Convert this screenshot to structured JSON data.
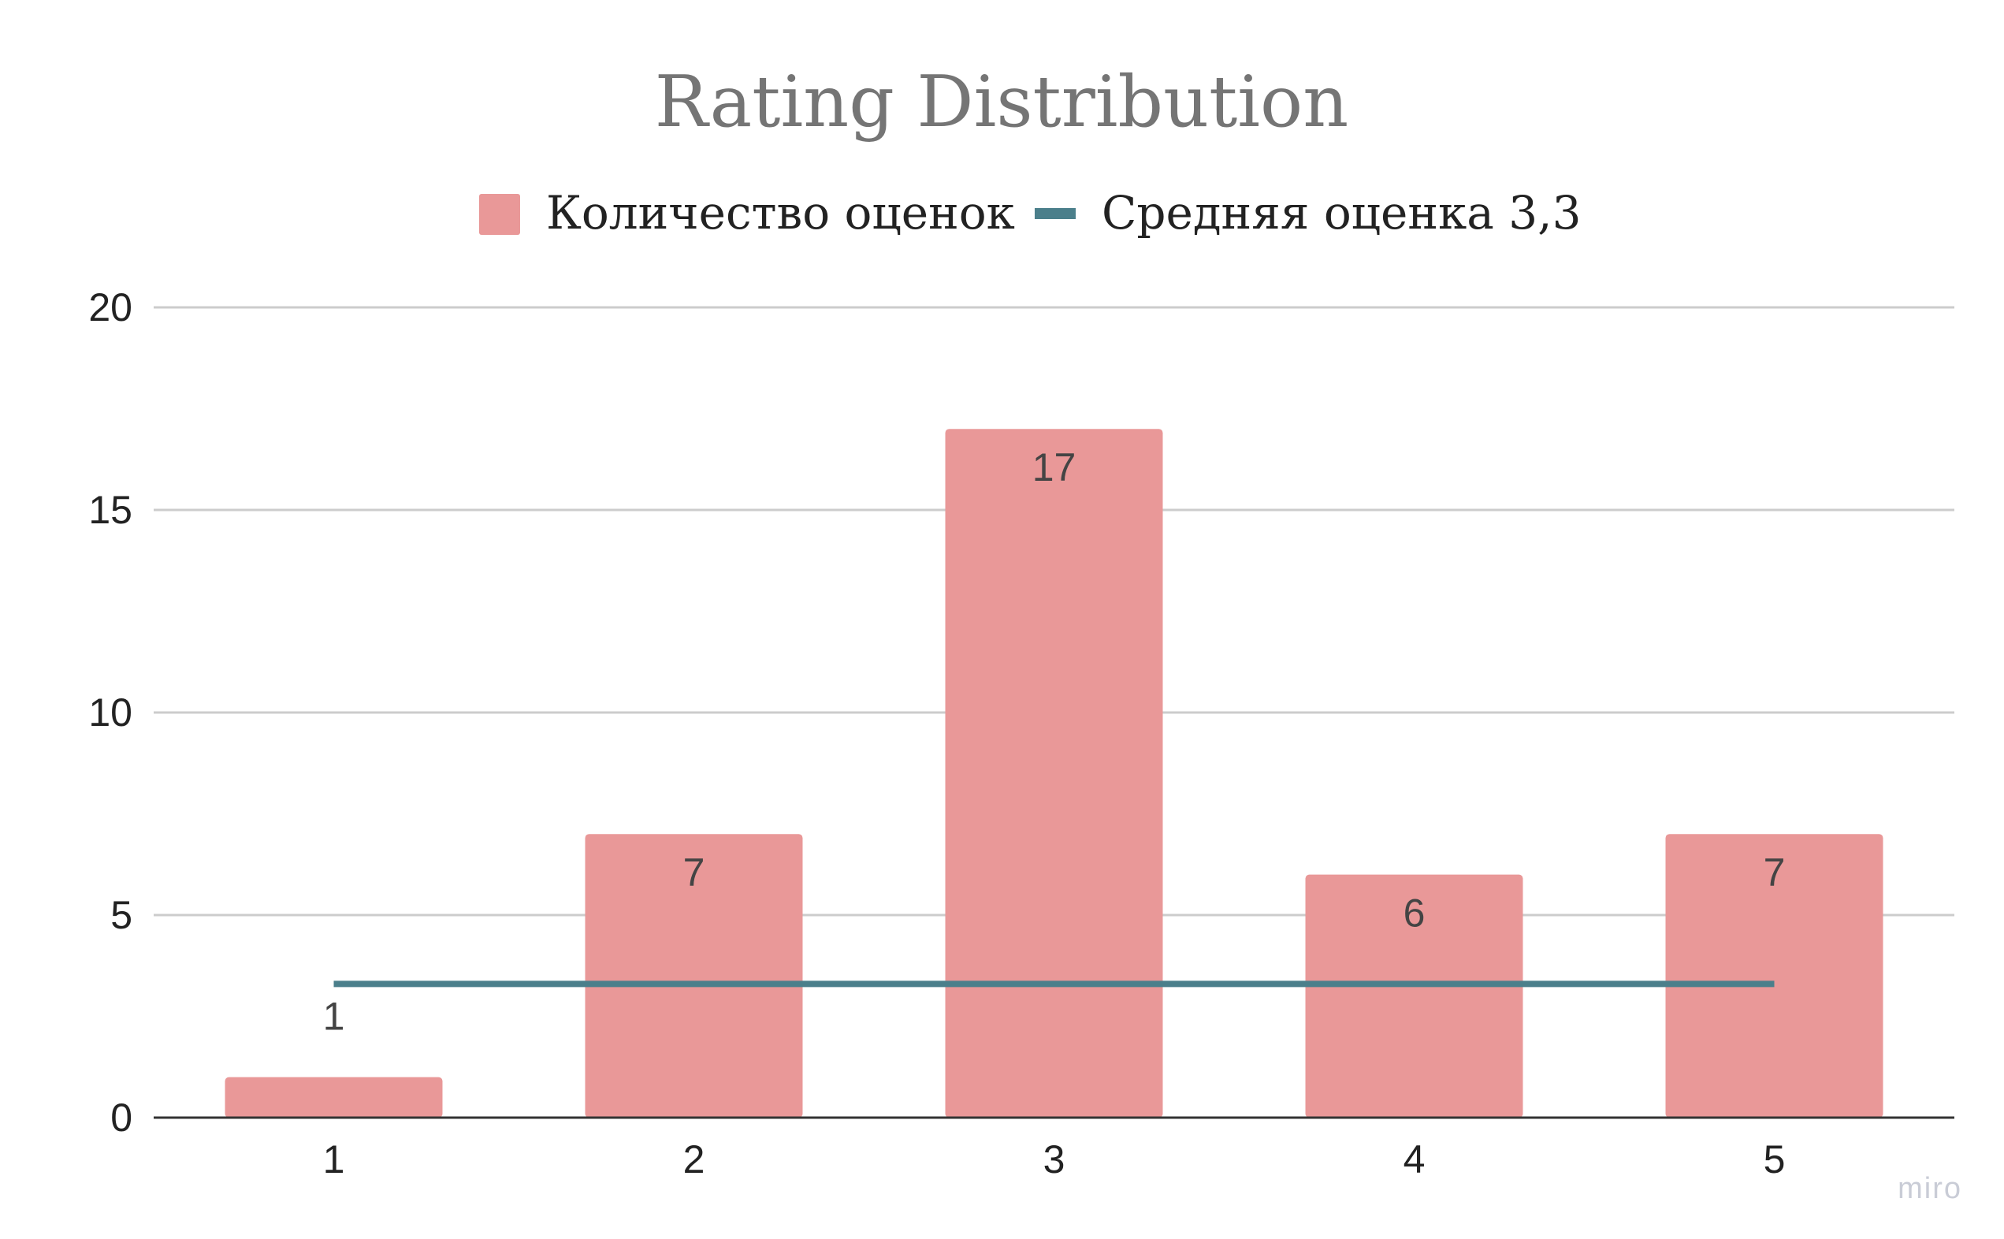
{
  "chart_data": {
    "type": "bar",
    "title": "Rating Distribution",
    "categories": [
      "1",
      "2",
      "3",
      "4",
      "5"
    ],
    "series": [
      {
        "name": "Количество оценок",
        "kind": "bar",
        "values": [
          1,
          7,
          17,
          6,
          7
        ],
        "color": "#e99898"
      },
      {
        "name": "Средняя оценка 3,3",
        "kind": "line",
        "values": [
          3.3,
          3.3,
          3.3,
          3.3,
          3.3
        ],
        "color": "#4b7f8b"
      }
    ],
    "data_labels": [
      "1",
      "7",
      "17",
      "6",
      "7"
    ],
    "y_ticks": [
      "0",
      "5",
      "10",
      "15",
      "20"
    ],
    "ylim": [
      0,
      20
    ],
    "grid": true,
    "legend_position": "top-center",
    "xlabel": "",
    "ylabel": ""
  },
  "watermark": "miro",
  "colors": {
    "bar": "#e99898",
    "line": "#4b7f8b",
    "grid": "#cccccc",
    "axis": "#333333",
    "title": "#757575"
  }
}
